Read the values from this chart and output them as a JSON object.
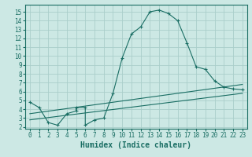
{
  "xlabel": "Humidex (Indice chaleur)",
  "background_color": "#cce8e4",
  "line_color": "#1a6e64",
  "grid_color": "#aaceca",
  "xlim": [
    -0.5,
    23.5
  ],
  "ylim": [
    1.8,
    15.8
  ],
  "xticks": [
    0,
    1,
    2,
    3,
    4,
    5,
    6,
    7,
    8,
    9,
    10,
    11,
    12,
    13,
    14,
    15,
    16,
    17,
    18,
    19,
    20,
    21,
    22,
    23
  ],
  "yticks": [
    2,
    3,
    4,
    5,
    6,
    7,
    8,
    9,
    10,
    11,
    12,
    13,
    14,
    15
  ],
  "series1_x": [
    0,
    1,
    2,
    3,
    4,
    5,
    5,
    6,
    6,
    7,
    8,
    9,
    10,
    11,
    12,
    13,
    14,
    15,
    16,
    17,
    18,
    19,
    20,
    21,
    22,
    23
  ],
  "series1_y": [
    4.8,
    4.2,
    2.5,
    2.2,
    3.5,
    3.8,
    4.2,
    4.2,
    2.2,
    2.8,
    3.0,
    5.8,
    9.8,
    12.5,
    13.3,
    15.0,
    15.2,
    14.8,
    14.0,
    11.5,
    8.8,
    8.5,
    7.2,
    6.5,
    6.3,
    6.2
  ],
  "series2_x": [
    0,
    23
  ],
  "series2_y": [
    3.5,
    6.8
  ],
  "series3_x": [
    0,
    23
  ],
  "series3_y": [
    2.8,
    5.8
  ],
  "tick_fontsize": 5.5,
  "label_fontsize": 7
}
